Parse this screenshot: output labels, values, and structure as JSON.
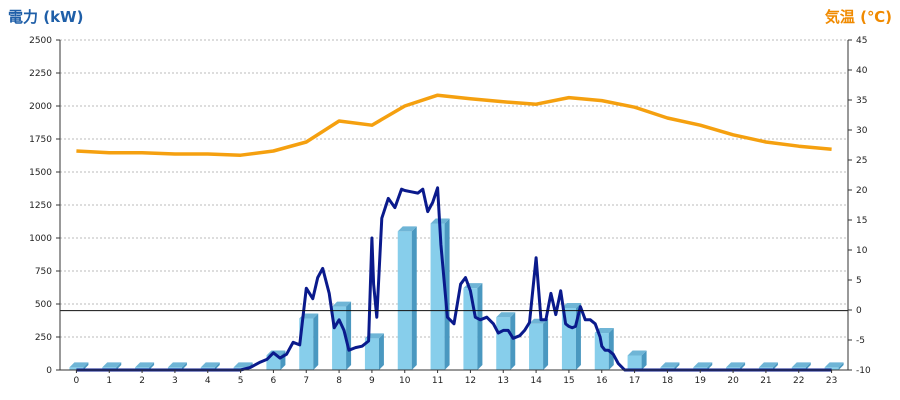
{
  "titles": {
    "left": "電力 (kW)",
    "right": "気温 (℃)"
  },
  "colors": {
    "bar": "#87ceeb",
    "power_line": "#0a1a8c",
    "temp_line": "#f5a00f",
    "left_title": "#1f5fa8",
    "right_title": "#f08a00"
  },
  "chart_data": {
    "type": "bar",
    "grid": true,
    "y_left": {
      "label": "電力 (kW)",
      "range": [
        0,
        2500
      ],
      "ticks": [
        0,
        250,
        500,
        750,
        1000,
        1250,
        1500,
        1750,
        2000,
        2250,
        2500
      ]
    },
    "y_right": {
      "label": "気温 (℃)",
      "range": [
        -10,
        45
      ],
      "ticks": [
        -10,
        -5,
        0,
        5,
        10,
        15,
        20,
        25,
        30,
        35,
        40,
        45
      ]
    },
    "categories": [
      "0",
      "1",
      "2",
      "3",
      "4",
      "5",
      "6",
      "7",
      "8",
      "9",
      "10",
      "11",
      "12",
      "13",
      "14",
      "15",
      "16",
      "17",
      "18",
      "19",
      "20",
      "21",
      "22",
      "23"
    ],
    "series": [
      {
        "type": "bar",
        "values": [
          20,
          20,
          20,
          20,
          20,
          20,
          110,
          390,
          480,
          240,
          1050,
          1110,
          620,
          400,
          350,
          470,
          280,
          110,
          20,
          20,
          20,
          20,
          20,
          20
        ]
      },
      {
        "type": "line",
        "x": [
          0,
          0.5,
          1,
          1.5,
          2,
          2.5,
          3,
          3.5,
          4,
          4.5,
          5,
          5.3,
          5.6,
          5.8,
          6,
          6.2,
          6.4,
          6.6,
          6.8,
          7,
          7.2,
          7.35,
          7.5,
          7.7,
          7.85,
          8,
          8.15,
          8.3,
          8.5,
          8.7,
          8.9,
          9,
          9.05,
          9.15,
          9.3,
          9.5,
          9.7,
          9.9,
          10,
          10.2,
          10.4,
          10.55,
          10.7,
          10.85,
          11,
          11.1,
          11.3,
          11.5,
          11.7,
          11.85,
          12,
          12.15,
          12.3,
          12.5,
          12.7,
          12.85,
          13,
          13.15,
          13.3,
          13.5,
          13.65,
          13.8,
          14,
          14.15,
          14.3,
          14.45,
          14.6,
          14.75,
          14.9,
          15,
          15.1,
          15.2,
          15.35,
          15.5,
          15.65,
          15.8,
          15.95,
          16,
          16.1,
          16.2,
          16.35,
          16.5,
          16.7,
          16.9,
          17.1,
          17.3,
          17.4,
          18,
          19,
          20,
          21,
          22,
          23
        ],
        "values": [
          0,
          0,
          0,
          0,
          0,
          0,
          0,
          0,
          0,
          0,
          0,
          20,
          60,
          80,
          130,
          90,
          120,
          210,
          190,
          620,
          540,
          700,
          770,
          580,
          320,
          380,
          300,
          150,
          170,
          180,
          220,
          1000,
          650,
          400,
          1150,
          1300,
          1230,
          1370,
          1360,
          1350,
          1340,
          1370,
          1200,
          1270,
          1380,
          950,
          400,
          350,
          650,
          700,
          600,
          400,
          380,
          400,
          350,
          280,
          300,
          300,
          240,
          260,
          300,
          360,
          850,
          380,
          380,
          580,
          420,
          600,
          350,
          330,
          320,
          330,
          480,
          380,
          380,
          350,
          250,
          180,
          150,
          150,
          120,
          50,
          0,
          0,
          0,
          0,
          0,
          0,
          0,
          0,
          0,
          0,
          0
        ]
      },
      {
        "type": "line",
        "axis": "right",
        "x": [
          0,
          1,
          2,
          3,
          4,
          5,
          6,
          7,
          8,
          9,
          10,
          11,
          12,
          13,
          14,
          15,
          16,
          17,
          18,
          19,
          20,
          21,
          22,
          23
        ],
        "values": [
          26.5,
          26.2,
          26.2,
          26,
          26,
          25.8,
          26.5,
          28,
          31.5,
          30.8,
          34,
          35.8,
          35.2,
          34.7,
          34.3,
          35.4,
          34.9,
          33.8,
          32,
          30.8,
          29.2,
          28,
          27.3,
          26.8
        ]
      }
    ],
    "baseline_value": 450
  }
}
